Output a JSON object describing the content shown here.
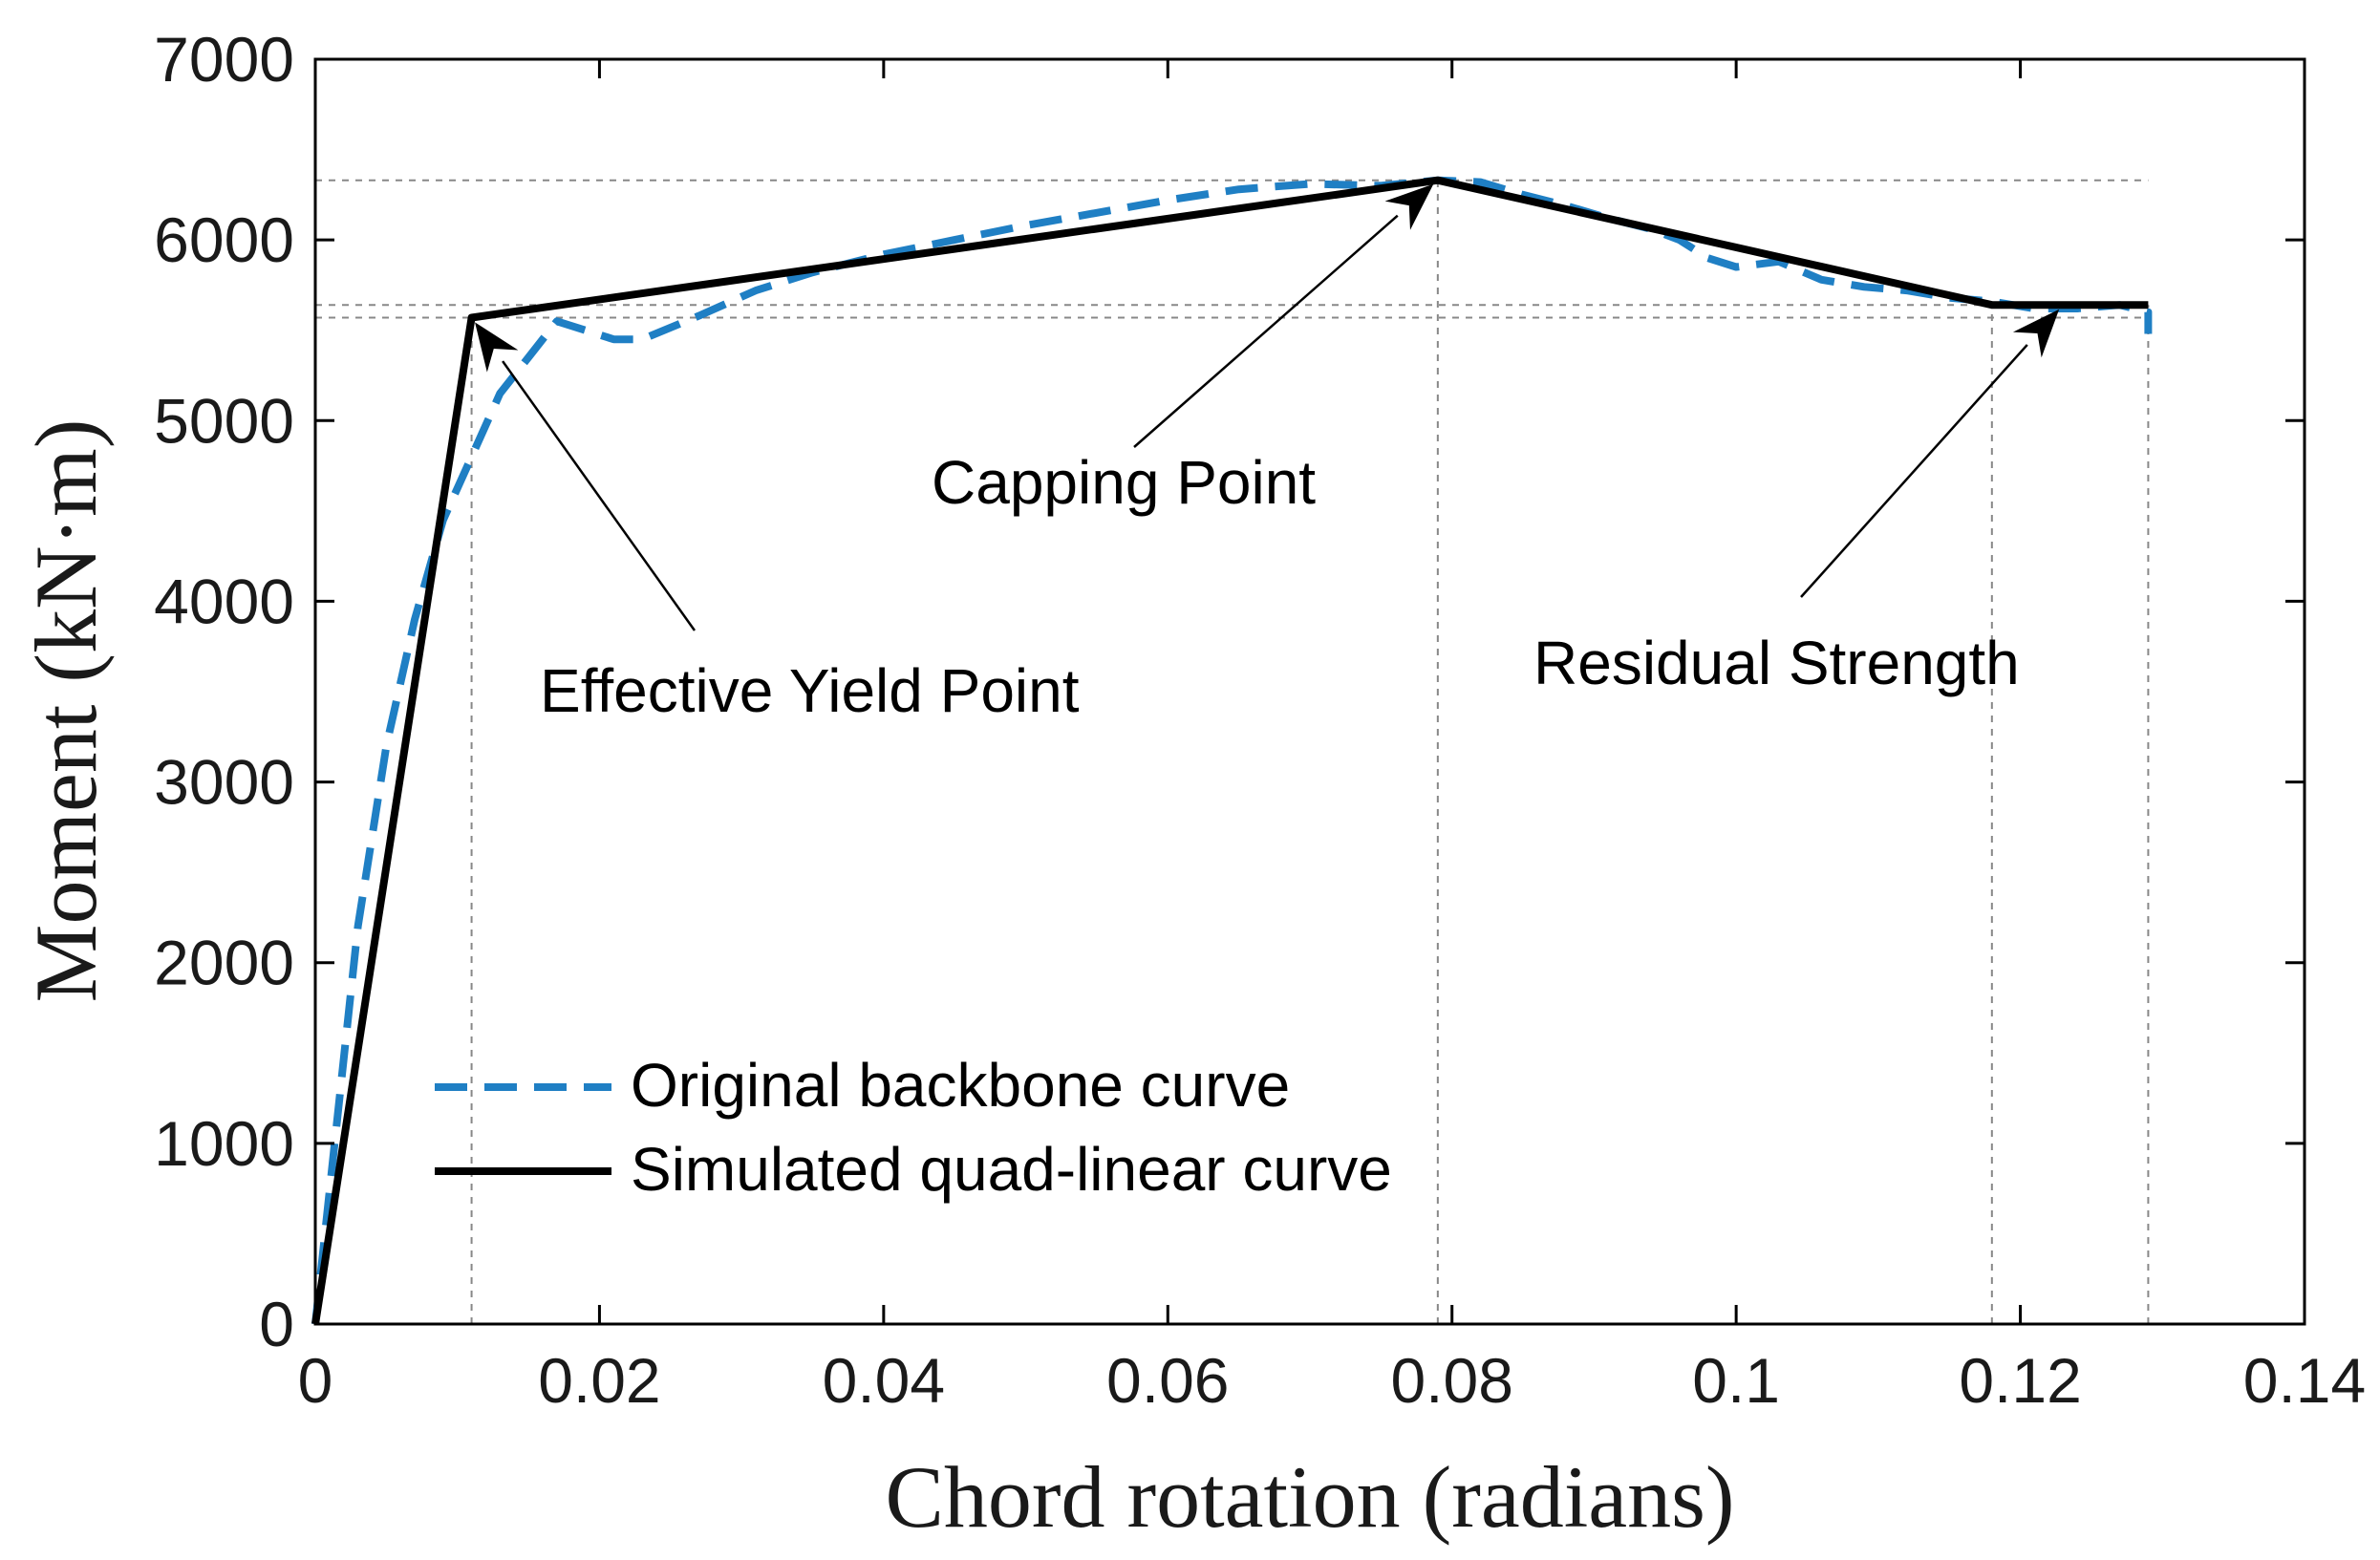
{
  "chart_data": {
    "type": "line",
    "title": "",
    "xlabel": "Chord rotation (radians)",
    "ylabel": "Moment (kN·m)",
    "xlim": [
      0,
      0.14
    ],
    "ylim": [
      0,
      7000
    ],
    "xticks": [
      0,
      0.02,
      0.04,
      0.06,
      0.08,
      0.1,
      0.12,
      0.14
    ],
    "xtick_labels": [
      "0",
      "0.02",
      "0.04",
      "0.06",
      "0.08",
      "0.1",
      "0.12",
      "0.14"
    ],
    "yticks": [
      0,
      1000,
      2000,
      3000,
      4000,
      5000,
      6000,
      7000
    ],
    "ytick_labels": [
      "0",
      "1000",
      "2000",
      "3000",
      "4000",
      "5000",
      "6000",
      "7000"
    ],
    "grid": false,
    "legend_position": "bottom-left",
    "colors": {
      "original": "#1f7fc4",
      "simulated": "#000000",
      "reference": "#888888"
    },
    "series": [
      {
        "name": "Original backbone curve",
        "style": "dashed",
        "x": [
          0,
          0.0015,
          0.003,
          0.005,
          0.007,
          0.009,
          0.011,
          0.013,
          0.015,
          0.017,
          0.019,
          0.021,
          0.023,
          0.027,
          0.031,
          0.035,
          0.04,
          0.045,
          0.05,
          0.055,
          0.06,
          0.065,
          0.07,
          0.075,
          0.079,
          0.082,
          0.085,
          0.088,
          0.091,
          0.094,
          0.096,
          0.098,
          0.1,
          0.103,
          0.106,
          0.109,
          0.112,
          0.115,
          0.118,
          0.121,
          0.124,
          0.127,
          0.129,
          0.129
        ],
        "y": [
          0,
          1100,
          2200,
          3200,
          3900,
          4450,
          4800,
          5150,
          5350,
          5550,
          5500,
          5450,
          5450,
          5580,
          5720,
          5820,
          5920,
          6000,
          6080,
          6150,
          6220,
          6280,
          6310,
          6300,
          6330,
          6320,
          6250,
          6190,
          6120,
          6060,
          6000,
          5900,
          5850,
          5880,
          5780,
          5740,
          5720,
          5680,
          5660,
          5620,
          5620,
          5640,
          5600,
          5480
        ]
      },
      {
        "name": "Simulated quad-linear curve",
        "style": "solid",
        "x": [
          0,
          0.011,
          0.079,
          0.118,
          0.129
        ],
        "y": [
          0,
          5570,
          6330,
          5640,
          5640
        ]
      }
    ],
    "reference_lines": {
      "horizontal": [
        6330,
        5640,
        5570
      ],
      "vertical": [
        0.011,
        0.079,
        0.118,
        0.129
      ]
    },
    "annotations": [
      {
        "text": "Effective Yield Point",
        "x": 0.011,
        "y": 5570
      },
      {
        "text": "Capping Point",
        "x": 0.079,
        "y": 6330
      },
      {
        "text": "Residual Strength",
        "x": 0.123,
        "y": 5640
      }
    ]
  }
}
